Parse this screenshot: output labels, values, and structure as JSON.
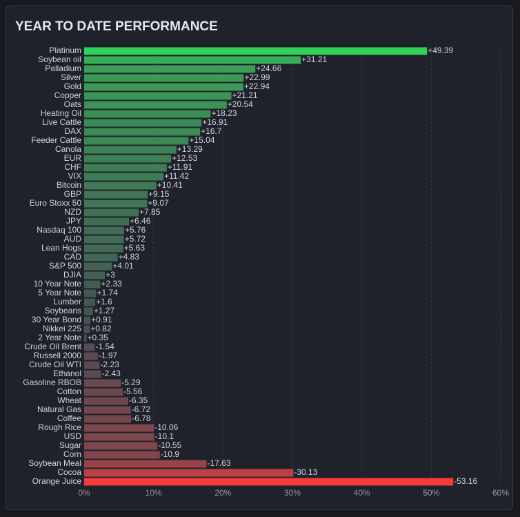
{
  "chart_data": {
    "type": "bar",
    "orientation": "horizontal",
    "title": "YEAR TO DATE PERFORMANCE",
    "categories": [
      "Platinum",
      "Soybean oil",
      "Palladium",
      "Silver",
      "Gold",
      "Copper",
      "Oats",
      "Heating Oil",
      "Live Cattle",
      "DAX",
      "Feeder Cattle",
      "Canola",
      "EUR",
      "CHF",
      "VIX",
      "Bitcoin",
      "GBP",
      "Euro Stoxx 50",
      "NZD",
      "JPY",
      "Nasdaq 100",
      "AUD",
      "Lean Hogs",
      "CAD",
      "S&P 500",
      "DJIA",
      "10 Year Note",
      "5 Year Note",
      "Lumber",
      "Soybeans",
      "30 Year Bond",
      "Nikkei 225",
      "2 Year Note",
      "Crude Oil Brent",
      "Russell 2000",
      "Crude Oil WTI",
      "Ethanol",
      "Gasoline RBOB",
      "Cotton",
      "Wheat",
      "Natural Gas",
      "Coffee",
      "Rough Rice",
      "USD",
      "Sugar",
      "Corn",
      "Soybean Meal",
      "Cocoa",
      "Orange Juice"
    ],
    "values": [
      49.39,
      31.21,
      24.66,
      22.99,
      22.94,
      21.21,
      20.54,
      18.23,
      16.91,
      16.7,
      15.04,
      13.29,
      12.53,
      11.91,
      11.42,
      10.41,
      9.15,
      9.07,
      7.85,
      6.46,
      5.76,
      5.72,
      5.63,
      4.83,
      4.01,
      3,
      2.33,
      1.74,
      1.6,
      1.27,
      0.91,
      0.82,
      0.35,
      -1.54,
      -1.97,
      -2.23,
      -2.43,
      -5.29,
      -5.56,
      -6.35,
      -6.72,
      -6.78,
      -10.06,
      -10.1,
      -10.55,
      -10.9,
      -17.63,
      -30.13,
      -53.16
    ],
    "value_labels": [
      "+49.39",
      "+31.21",
      "+24.66",
      "+22.99",
      "+22.94",
      "+21.21",
      "+20.54",
      "+18.23",
      "+16.91",
      "+16.7",
      "+15.04",
      "+13.29",
      "+12.53",
      "+11.91",
      "+11.42",
      "+10.41",
      "+9.15",
      "+9.07",
      "+7.85",
      "+6.46",
      "+5.76",
      "+5.72",
      "+5.63",
      "+4.83",
      "+4.01",
      "+3",
      "+2.33",
      "+1.74",
      "+1.6",
      "+1.27",
      "+0.91",
      "+0.82",
      "+0.35",
      "-1.54",
      "-1.97",
      "-2.23",
      "-2.43",
      "-5.29",
      "-5.56",
      "-6.35",
      "-6.72",
      "-6.78",
      "-10.06",
      "-10.1",
      "-10.55",
      "-10.9",
      "-17.63",
      "-30.13",
      "-53.16"
    ],
    "color_positive": "#30d158",
    "color_neutral": "#474c54",
    "color_negative": "#f53b3b",
    "xlim": [
      0,
      60
    ],
    "xticks": [
      {
        "value": 0,
        "label": "0%"
      },
      {
        "value": 10,
        "label": "10%"
      },
      {
        "value": 20,
        "label": "20%"
      },
      {
        "value": 30,
        "label": "30%"
      },
      {
        "value": 40,
        "label": "40%"
      },
      {
        "value": 50,
        "label": "50%"
      },
      {
        "value": 60,
        "label": "60%"
      }
    ],
    "grid": true
  }
}
